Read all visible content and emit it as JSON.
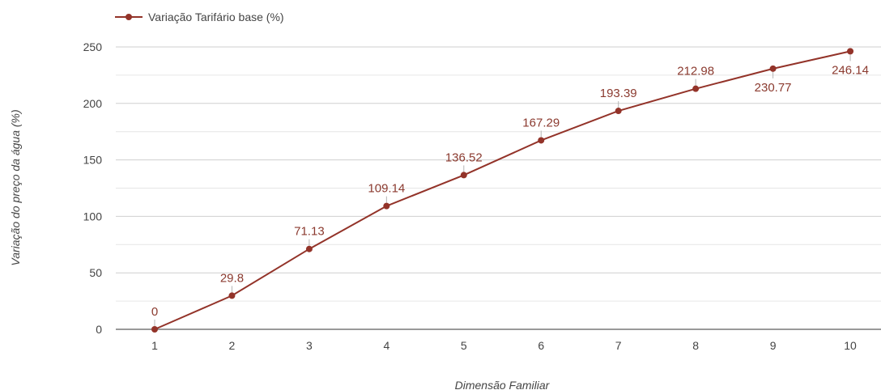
{
  "chart_data": {
    "type": "line",
    "series": [
      {
        "name": "Variação Tarifário base (%)",
        "color": "#933329",
        "x": [
          1,
          2,
          3,
          4,
          5,
          6,
          7,
          8,
          9,
          10
        ],
        "values": [
          0,
          29.8,
          71.13,
          109.14,
          136.52,
          167.29,
          193.39,
          212.98,
          230.77,
          246.14
        ],
        "labels": [
          "0",
          "29.8",
          "71.13",
          "109.14",
          "136.52",
          "167.29",
          "193.39",
          "212.98",
          "230.77",
          "246.14"
        ],
        "label_positions": [
          "above",
          "above",
          "above",
          "above",
          "above",
          "above",
          "above",
          "above",
          "below",
          "below"
        ]
      }
    ],
    "x_ticks": [
      "1",
      "2",
      "3",
      "4",
      "5",
      "6",
      "7",
      "8",
      "9",
      "10"
    ],
    "y_ticks": [
      "0",
      "50",
      "100",
      "150",
      "200",
      "250"
    ],
    "ylim": [
      0,
      250
    ],
    "xlabel": "Dimensão Familiar",
    "ylabel": "Variação do preço da água (%)",
    "grid": true,
    "legend_position": "top-left"
  }
}
